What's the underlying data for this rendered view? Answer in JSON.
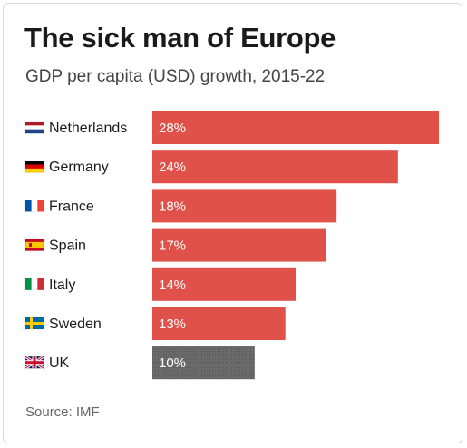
{
  "header": {
    "title": "The sick man of Europe",
    "subtitle": "GDP per capita (USD) growth, 2015-22"
  },
  "footer": {
    "source": "Source: IMF"
  },
  "colors": {
    "default_bar": "#e0514a",
    "highlight_bar": "#666666",
    "highlight_pattern": "dotted"
  },
  "chart_data": {
    "type": "bar",
    "orientation": "horizontal",
    "title": "The sick man of Europe",
    "subtitle": "GDP per capita (USD) growth, 2015-22",
    "categories": [
      "Netherlands",
      "Germany",
      "France",
      "Spain",
      "Italy",
      "Sweden",
      "UK"
    ],
    "values": [
      28,
      24,
      18,
      17,
      14,
      13,
      10
    ],
    "data_labels": [
      "28%",
      "24%",
      "18%",
      "17%",
      "14%",
      "13%",
      "10%"
    ],
    "flags": [
      "netherlands-flag-icon",
      "germany-flag-icon",
      "france-flag-icon",
      "spain-flag-icon",
      "italy-flag-icon",
      "sweden-flag-icon",
      "uk-flag-icon"
    ],
    "highlight": "UK",
    "xlim": [
      0,
      28
    ],
    "grid": false,
    "legend": "none"
  }
}
